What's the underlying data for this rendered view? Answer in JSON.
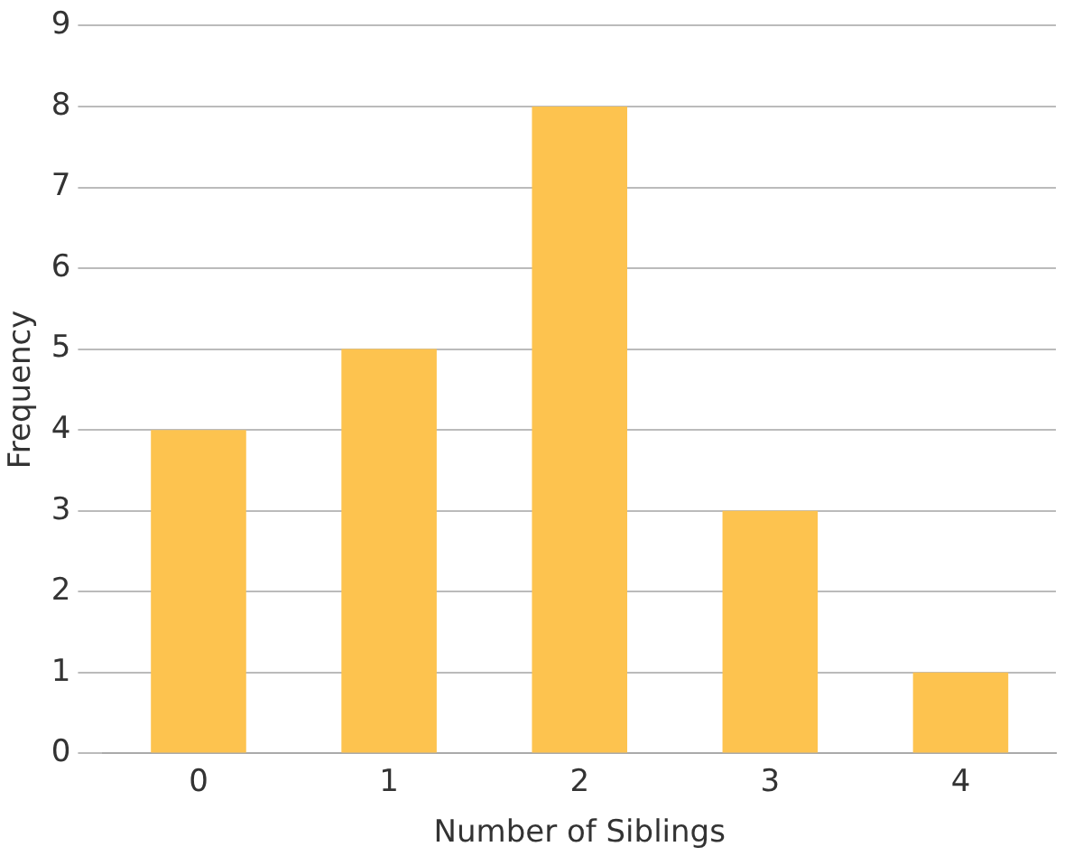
{
  "chart_data": {
    "type": "bar",
    "xlabel": "Number of Siblings",
    "ylabel": "Frequency",
    "categories": [
      "0",
      "1",
      "2",
      "3",
      "4"
    ],
    "values": [
      4,
      5,
      8,
      3,
      1
    ],
    "color": "#fdc34f",
    "ylim": [
      0,
      9
    ],
    "yticks": [
      0,
      1,
      2,
      3,
      4,
      5,
      6,
      7,
      8,
      9
    ],
    "grid": "y",
    "legend": false
  }
}
